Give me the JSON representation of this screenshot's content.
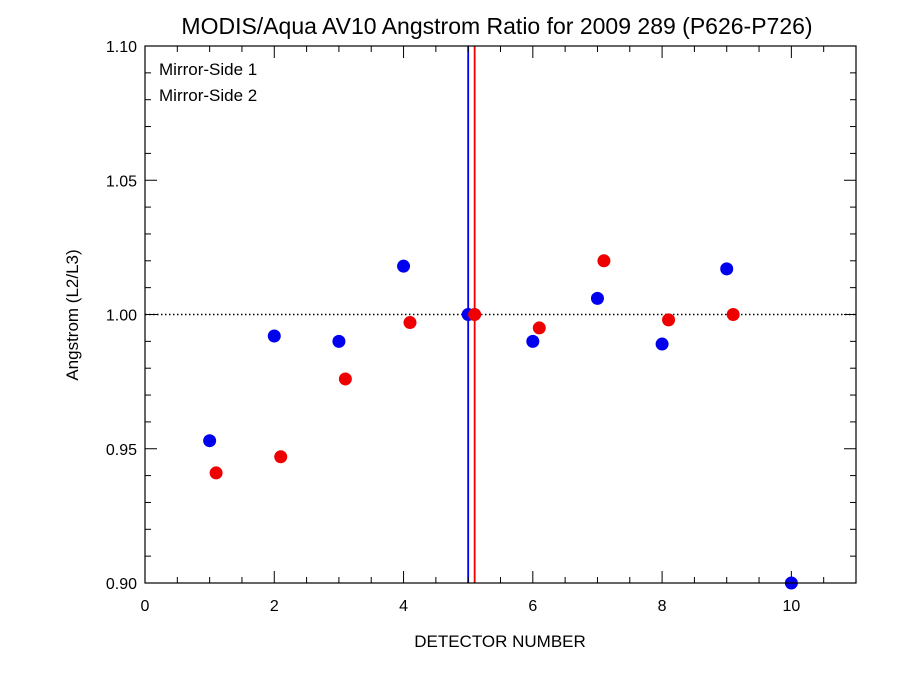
{
  "chart_data": {
    "type": "scatter",
    "title": "MODIS/Aqua AV10 Angstrom Ratio for 2009 289 (P626-P726)",
    "xlabel": "DETECTOR NUMBER",
    "ylabel": "Angstrom (L2/L3)",
    "xlim": [
      0,
      11
    ],
    "ylim": [
      0.9,
      1.1
    ],
    "x_ticks": [
      0,
      2,
      4,
      6,
      8,
      10
    ],
    "x_tick_labels": [
      "0",
      "2",
      "4",
      "6",
      "8",
      "10"
    ],
    "y_ticks": [
      0.9,
      0.95,
      1.0,
      1.05,
      1.1
    ],
    "y_tick_labels": [
      "0.90",
      "0.95",
      "1.00",
      "1.05",
      "1.10"
    ],
    "reference_line_y": 1.0,
    "vertical_lines": [
      {
        "x": 5.0,
        "color": "#0000ee"
      },
      {
        "x": 5.1,
        "color": "#ee0000"
      }
    ],
    "legend_position": "top-left",
    "series": [
      {
        "name": "Mirror-Side 1",
        "color": "#0000ee",
        "points": [
          {
            "x": 1,
            "y": 0.953
          },
          {
            "x": 2,
            "y": 0.992
          },
          {
            "x": 3,
            "y": 0.99
          },
          {
            "x": 4,
            "y": 1.018
          },
          {
            "x": 5,
            "y": 1.0
          },
          {
            "x": 6,
            "y": 0.99
          },
          {
            "x": 7,
            "y": 1.006
          },
          {
            "x": 8,
            "y": 0.989
          },
          {
            "x": 9,
            "y": 1.017
          },
          {
            "x": 10,
            "y": 0.9
          }
        ]
      },
      {
        "name": "Mirror-Side 2",
        "color": "#ee0000",
        "points": [
          {
            "x": 1.1,
            "y": 0.941
          },
          {
            "x": 2.1,
            "y": 0.947
          },
          {
            "x": 3.1,
            "y": 0.976
          },
          {
            "x": 4.1,
            "y": 0.997
          },
          {
            "x": 5.1,
            "y": 1.0
          },
          {
            "x": 6.1,
            "y": 0.995
          },
          {
            "x": 7.1,
            "y": 1.02
          },
          {
            "x": 8.1,
            "y": 0.998
          },
          {
            "x": 9.1,
            "y": 1.0
          }
        ]
      }
    ]
  }
}
